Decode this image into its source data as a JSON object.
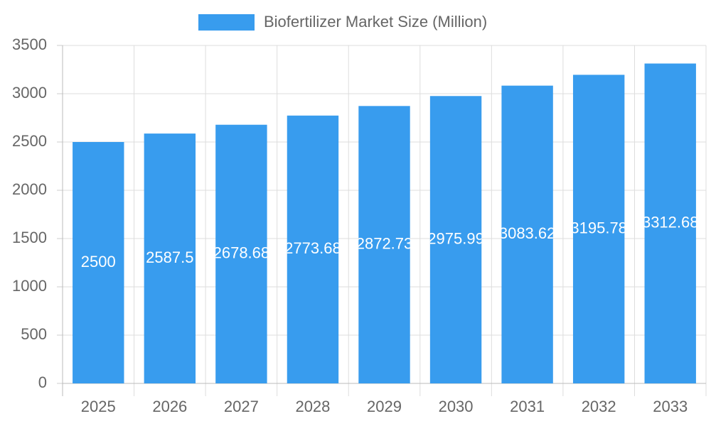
{
  "chart_data": {
    "type": "bar",
    "categories": [
      "2025",
      "2026",
      "2027",
      "2028",
      "2029",
      "2030",
      "2031",
      "2032",
      "2033"
    ],
    "series": [
      {
        "name": "Biofertilizer Market Size (Million)",
        "color": "#389cee",
        "values": [
          2500,
          2587.5,
          2678.68,
          2773.68,
          2872.73,
          2975.99,
          3083.62,
          3195.78,
          3312.68
        ]
      }
    ],
    "ylim": [
      0,
      3500
    ],
    "yticks": [
      0,
      500,
      1000,
      1500,
      2000,
      2500,
      3000,
      3500
    ],
    "grid": true,
    "legend": "top",
    "show_value_labels": true
  }
}
